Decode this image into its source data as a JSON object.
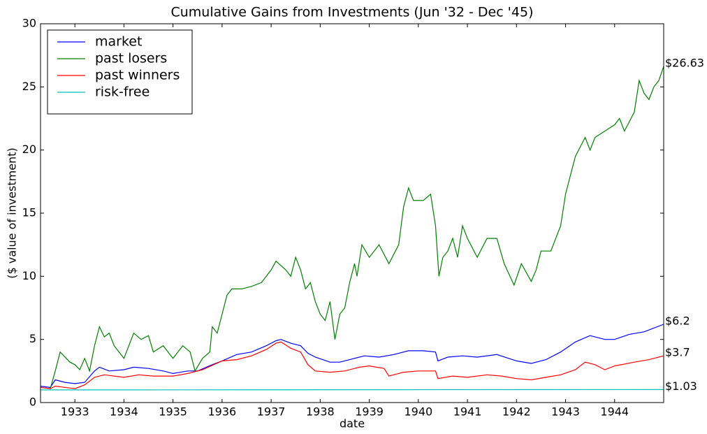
{
  "chart_data": {
    "type": "line",
    "title": "Cumulative Gains from Investments (Jun '32 - Dec '45)",
    "x_label": "date",
    "y_label": "($ value of investment)",
    "xlim": [
      1932.3,
      1945.0
    ],
    "xticks": [
      1933,
      1934,
      1935,
      1936,
      1937,
      1938,
      1939,
      1940,
      1941,
      1942,
      1943,
      1944
    ],
    "ylim": [
      0,
      30
    ],
    "yticks": [
      0,
      5,
      10,
      15,
      20,
      25,
      30
    ],
    "grid": false,
    "legend": "upper left",
    "series": [
      {
        "name": "market",
        "color": "#0000ff",
        "end_label": "$6.2",
        "x": [
          1932.3,
          1932.5,
          1932.6,
          1932.8,
          1933.0,
          1933.2,
          1933.4,
          1933.5,
          1933.7,
          1934.0,
          1934.2,
          1934.5,
          1934.8,
          1935.0,
          1935.3,
          1935.5,
          1935.8,
          1936.0,
          1936.3,
          1936.6,
          1936.9,
          1937.1,
          1937.2,
          1937.4,
          1937.6,
          1937.75,
          1937.9,
          1938.2,
          1938.4,
          1938.6,
          1938.9,
          1939.2,
          1939.5,
          1939.8,
          1940.1,
          1940.35,
          1940.4,
          1940.6,
          1940.9,
          1941.2,
          1941.6,
          1942.0,
          1942.3,
          1942.6,
          1942.9,
          1943.2,
          1943.5,
          1943.8,
          1944.0,
          1944.3,
          1944.6,
          1945.0
        ],
        "values": [
          1.3,
          1.2,
          1.8,
          1.6,
          1.5,
          1.6,
          2.5,
          2.8,
          2.5,
          2.6,
          2.8,
          2.7,
          2.5,
          2.3,
          2.5,
          2.5,
          3.0,
          3.3,
          3.8,
          4.0,
          4.5,
          4.9,
          5.0,
          4.7,
          4.5,
          3.9,
          3.6,
          3.2,
          3.2,
          3.4,
          3.7,
          3.6,
          3.8,
          4.1,
          4.1,
          4.0,
          3.3,
          3.6,
          3.7,
          3.6,
          3.8,
          3.3,
          3.1,
          3.4,
          4.0,
          4.8,
          5.3,
          5.0,
          5.0,
          5.4,
          5.6,
          6.2
        ]
      },
      {
        "name": "past losers",
        "color": "#008000",
        "end_label": "$26.63",
        "x": [
          1932.3,
          1932.5,
          1932.6,
          1932.7,
          1932.9,
          1933.0,
          1933.1,
          1933.2,
          1933.3,
          1933.4,
          1933.5,
          1933.6,
          1933.7,
          1933.8,
          1933.9,
          1934.0,
          1934.1,
          1934.2,
          1934.35,
          1934.5,
          1934.6,
          1934.8,
          1935.0,
          1935.2,
          1935.35,
          1935.45,
          1935.6,
          1935.75,
          1935.8,
          1935.9,
          1936.0,
          1936.1,
          1936.2,
          1936.4,
          1936.6,
          1936.8,
          1937.0,
          1937.1,
          1937.3,
          1937.4,
          1937.5,
          1937.6,
          1937.7,
          1937.8,
          1937.9,
          1938.0,
          1938.1,
          1938.2,
          1938.3,
          1938.4,
          1938.5,
          1938.6,
          1938.7,
          1938.75,
          1938.85,
          1939.0,
          1939.2,
          1939.4,
          1939.6,
          1939.7,
          1939.8,
          1939.9,
          1940.1,
          1940.25,
          1940.35,
          1940.42,
          1940.5,
          1940.6,
          1940.7,
          1940.8,
          1940.9,
          1941.0,
          1941.2,
          1941.4,
          1941.6,
          1941.75,
          1941.95,
          1942.1,
          1942.3,
          1942.4,
          1942.5,
          1942.7,
          1942.9,
          1943.0,
          1943.2,
          1943.4,
          1943.5,
          1943.6,
          1943.8,
          1944.0,
          1944.1,
          1944.2,
          1944.4,
          1944.5,
          1944.6,
          1944.7,
          1944.8,
          1944.9,
          1945.0
        ],
        "values": [
          1.2,
          1.1,
          2.5,
          4.0,
          3.2,
          3.0,
          2.6,
          3.5,
          2.5,
          4.5,
          6.0,
          5.2,
          5.5,
          4.5,
          4.0,
          3.5,
          4.5,
          5.5,
          5.0,
          5.3,
          4.0,
          4.5,
          3.5,
          4.5,
          4.0,
          2.5,
          3.5,
          4.0,
          6.0,
          5.5,
          7.0,
          8.5,
          9.0,
          9.0,
          9.2,
          9.5,
          10.5,
          11.2,
          10.5,
          10.0,
          11.5,
          10.5,
          9.0,
          9.5,
          8.0,
          7.0,
          6.5,
          8.0,
          5.0,
          7.0,
          7.5,
          9.5,
          11.0,
          10.0,
          12.5,
          11.5,
          12.5,
          11.0,
          12.5,
          15.5,
          17.0,
          16.0,
          16.0,
          16.5,
          14.0,
          10.0,
          11.5,
          12.0,
          13.0,
          11.5,
          14.0,
          13.0,
          11.5,
          13.0,
          13.0,
          11.0,
          9.3,
          11.0,
          9.6,
          10.5,
          12.0,
          12.0,
          14.0,
          16.5,
          19.5,
          21.0,
          20.0,
          21.0,
          21.5,
          22.0,
          22.5,
          21.5,
          23.0,
          25.5,
          24.5,
          24.0,
          25.0,
          25.5,
          26.63
        ]
      },
      {
        "name": "past winners",
        "color": "#ff0000",
        "end_label": "$3.7",
        "x": [
          1932.3,
          1932.5,
          1932.6,
          1932.8,
          1933.0,
          1933.2,
          1933.4,
          1933.6,
          1934.0,
          1934.3,
          1934.6,
          1935.0,
          1935.3,
          1935.6,
          1936.0,
          1936.3,
          1936.6,
          1936.9,
          1937.1,
          1937.2,
          1937.4,
          1937.6,
          1937.75,
          1937.9,
          1938.2,
          1938.5,
          1938.8,
          1939.0,
          1939.3,
          1939.4,
          1939.7,
          1940.0,
          1940.35,
          1940.4,
          1940.7,
          1941.0,
          1941.4,
          1941.7,
          1942.0,
          1942.3,
          1942.6,
          1942.9,
          1943.2,
          1943.4,
          1943.6,
          1943.8,
          1944.0,
          1944.4,
          1944.7,
          1945.0
        ],
        "values": [
          1.2,
          1.1,
          1.3,
          1.2,
          1.1,
          1.4,
          2.0,
          2.2,
          2.0,
          2.2,
          2.1,
          2.1,
          2.3,
          2.6,
          3.3,
          3.4,
          3.7,
          4.2,
          4.7,
          4.8,
          4.3,
          4.0,
          3.0,
          2.5,
          2.4,
          2.5,
          2.8,
          2.9,
          2.7,
          2.1,
          2.4,
          2.5,
          2.5,
          1.9,
          2.1,
          2.0,
          2.2,
          2.1,
          1.9,
          1.8,
          2.0,
          2.2,
          2.6,
          3.2,
          3.0,
          2.6,
          2.9,
          3.2,
          3.4,
          3.7
        ]
      },
      {
        "name": "risk-free",
        "color": "#00bfbf",
        "end_label": "$1.03",
        "x": [
          1932.3,
          1945.0
        ],
        "values": [
          1.0,
          1.03
        ]
      }
    ]
  }
}
